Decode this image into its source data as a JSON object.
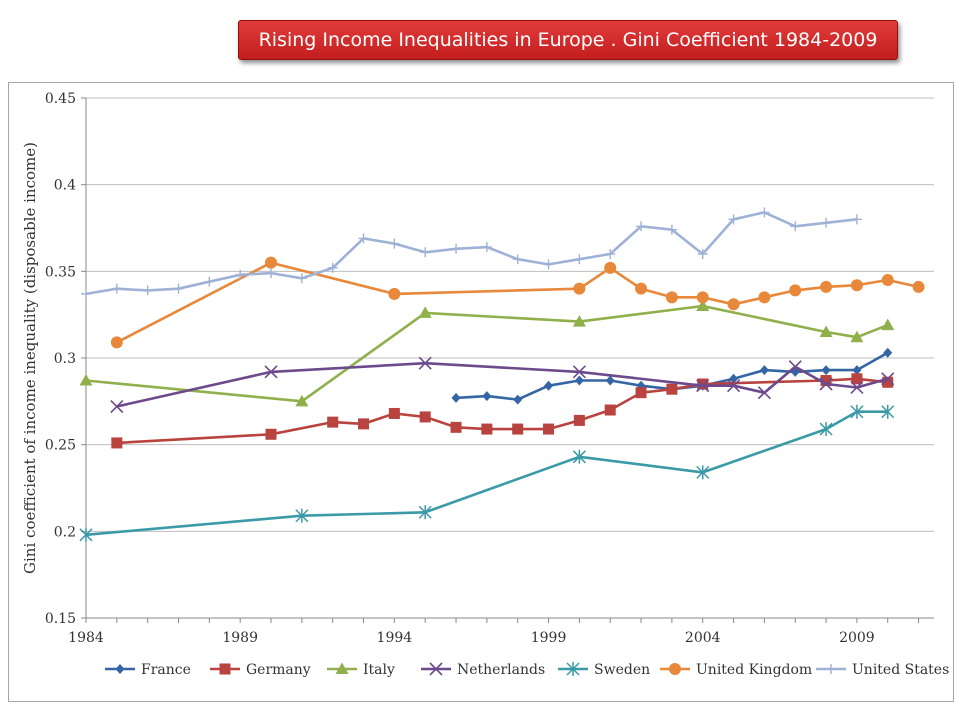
{
  "header": {
    "title": "Rising Income Inequalities in Europe . Gini Coefficient 1984-2009"
  },
  "chart_data": {
    "type": "line",
    "title": "",
    "xlabel": "",
    "ylabel": "Gini coefficient of income inequality (disposable income)",
    "xlim": [
      1984,
      2011.5
    ],
    "ylim": [
      0.15,
      0.45
    ],
    "x_ticks": [
      1984,
      1989,
      1994,
      1999,
      2004,
      2009
    ],
    "y_ticks": [
      0.15,
      0.2,
      0.25,
      0.3,
      0.35,
      0.4,
      0.45
    ],
    "y_tick_labels": [
      "0.15",
      "0.2",
      "0.25",
      "0.3",
      "0.35",
      "0.4",
      "0.45"
    ],
    "grid": "horizontal",
    "legend_position": "bottom",
    "series": [
      {
        "name": "France",
        "color": "#3465a4",
        "marker": "diamond",
        "x": [
          1996,
          1997,
          1998,
          1999,
          2000,
          2001,
          2002,
          2003,
          2004,
          2005,
          2006,
          2007,
          2008,
          2009,
          2010
        ],
        "y": [
          0.277,
          0.278,
          0.276,
          0.284,
          0.287,
          0.287,
          0.284,
          0.282,
          0.284,
          0.288,
          0.293,
          0.292,
          0.293,
          0.293,
          0.303
        ]
      },
      {
        "name": "Germany",
        "color": "#b8433f",
        "marker": "square",
        "x": [
          1985,
          1990,
          1992,
          1993,
          1994,
          1995,
          1996,
          1997,
          1998,
          1999,
          2000,
          2001,
          2002,
          2003,
          2004,
          2008,
          2009,
          2010
        ],
        "y": [
          0.251,
          0.256,
          0.263,
          0.262,
          0.268,
          0.266,
          0.26,
          0.259,
          0.259,
          0.259,
          0.264,
          0.27,
          0.28,
          0.282,
          0.285,
          0.287,
          0.288,
          0.286
        ]
      },
      {
        "name": "Italy",
        "color": "#8fb04b",
        "marker": "triangle",
        "x": [
          1984,
          1991,
          1995,
          2000,
          2004,
          2008,
          2009,
          2010
        ],
        "y": [
          0.287,
          0.275,
          0.326,
          0.321,
          0.33,
          0.315,
          0.312,
          0.319
        ]
      },
      {
        "name": "Netherlands",
        "color": "#6c4a8c",
        "marker": "x",
        "x": [
          1985,
          1990,
          1995,
          2000,
          2004,
          2005,
          2006,
          2007,
          2008,
          2009,
          2010
        ],
        "y": [
          0.272,
          0.292,
          0.297,
          0.292,
          0.284,
          0.284,
          0.28,
          0.295,
          0.285,
          0.283,
          0.288
        ]
      },
      {
        "name": "Sweden",
        "color": "#3b9aa8",
        "marker": "asterisk",
        "x": [
          1984,
          1991,
          1995,
          2000,
          2004,
          2008,
          2009,
          2010
        ],
        "y": [
          0.198,
          0.209,
          0.211,
          0.243,
          0.234,
          0.259,
          0.269,
          0.269
        ]
      },
      {
        "name": "United Kingdom",
        "color": "#e8883a",
        "marker": "circle",
        "x": [
          1985,
          1990,
          1994,
          2000,
          2001,
          2002,
          2003,
          2004,
          2005,
          2006,
          2007,
          2008,
          2009,
          2010,
          2011
        ],
        "y": [
          0.309,
          0.355,
          0.337,
          0.34,
          0.352,
          0.34,
          0.335,
          0.335,
          0.331,
          0.335,
          0.339,
          0.341,
          0.342,
          0.345,
          0.341
        ]
      },
      {
        "name": "United States",
        "color": "#9fb2d6",
        "marker": "plus",
        "x": [
          1984,
          1985,
          1986,
          1987,
          1988,
          1989,
          1990,
          1991,
          1992,
          1993,
          1994,
          1995,
          1996,
          1997,
          1998,
          1999,
          2000,
          2001,
          2002,
          2003,
          2004,
          2005,
          2006,
          2007,
          2008,
          2009
        ],
        "y": [
          0.337,
          0.34,
          0.339,
          0.34,
          0.344,
          0.348,
          0.349,
          0.346,
          0.352,
          0.369,
          0.366,
          0.361,
          0.363,
          0.364,
          0.357,
          0.354,
          0.357,
          0.36,
          0.376,
          0.374,
          0.36,
          0.38,
          0.384,
          0.376,
          0.378,
          0.38
        ]
      }
    ]
  }
}
